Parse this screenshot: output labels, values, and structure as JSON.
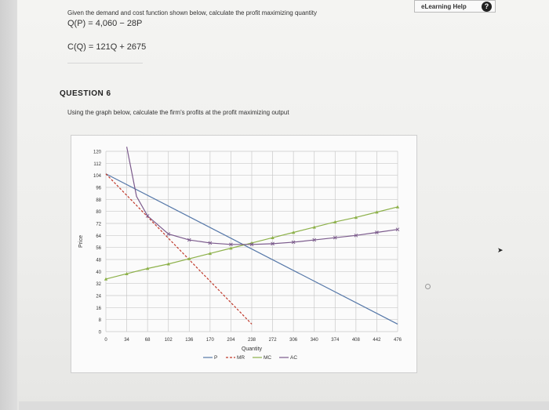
{
  "help": {
    "label": "eLearning Help",
    "icon": "question-circle-icon"
  },
  "question5": {
    "prompt": "Given the demand and cost function shown below, calculate the profit maximizing quantity",
    "demand": "Q(P) = 4,060 − 28P",
    "cost": "C(Q) = 121Q + 2675"
  },
  "question6": {
    "title": "QUESTION 6",
    "prompt": "Using the graph below, calculate the firm's profits at the profit maximizing output"
  },
  "chart_data": {
    "type": "line",
    "xlabel": "Quantity",
    "ylabel": "Price",
    "xlim": [
      0,
      476
    ],
    "ylim": [
      0,
      120
    ],
    "x_ticks": [
      0,
      34,
      68,
      102,
      136,
      170,
      204,
      238,
      272,
      306,
      340,
      374,
      408,
      442,
      476
    ],
    "y_ticks": [
      0,
      8,
      16,
      24,
      32,
      40,
      48,
      56,
      64,
      72,
      80,
      88,
      96,
      104,
      112,
      120
    ],
    "grid": true,
    "legend": "bottom",
    "series": [
      {
        "name": "P",
        "color": "#5577a8",
        "style": "solid",
        "points": [
          [
            0,
            105
          ],
          [
            476,
            5
          ]
        ]
      },
      {
        "name": "MR",
        "color": "#c0392b",
        "style": "dashed",
        "points": [
          [
            0,
            105
          ],
          [
            238,
            5
          ]
        ]
      },
      {
        "name": "MC",
        "color": "#8db14a",
        "style": "marker",
        "points": [
          [
            0,
            35
          ],
          [
            34,
            38.5
          ],
          [
            68,
            42
          ],
          [
            102,
            45
          ],
          [
            136,
            48.5
          ],
          [
            170,
            52
          ],
          [
            204,
            55.5
          ],
          [
            238,
            59
          ],
          [
            272,
            62.5
          ],
          [
            306,
            66
          ],
          [
            340,
            69.5
          ],
          [
            374,
            73
          ],
          [
            408,
            76
          ],
          [
            442,
            79.5
          ],
          [
            476,
            83
          ]
        ]
      },
      {
        "name": "AC",
        "color": "#7b5a8c",
        "style": "cross",
        "points": [
          [
            34,
            123
          ],
          [
            50,
            90
          ],
          [
            68,
            77
          ],
          [
            102,
            65
          ],
          [
            136,
            61
          ],
          [
            170,
            59
          ],
          [
            204,
            58
          ],
          [
            238,
            58
          ],
          [
            272,
            58.5
          ],
          [
            306,
            59.5
          ],
          [
            340,
            61
          ],
          [
            374,
            62.5
          ],
          [
            408,
            64
          ],
          [
            442,
            66
          ],
          [
            476,
            68
          ]
        ]
      }
    ]
  }
}
